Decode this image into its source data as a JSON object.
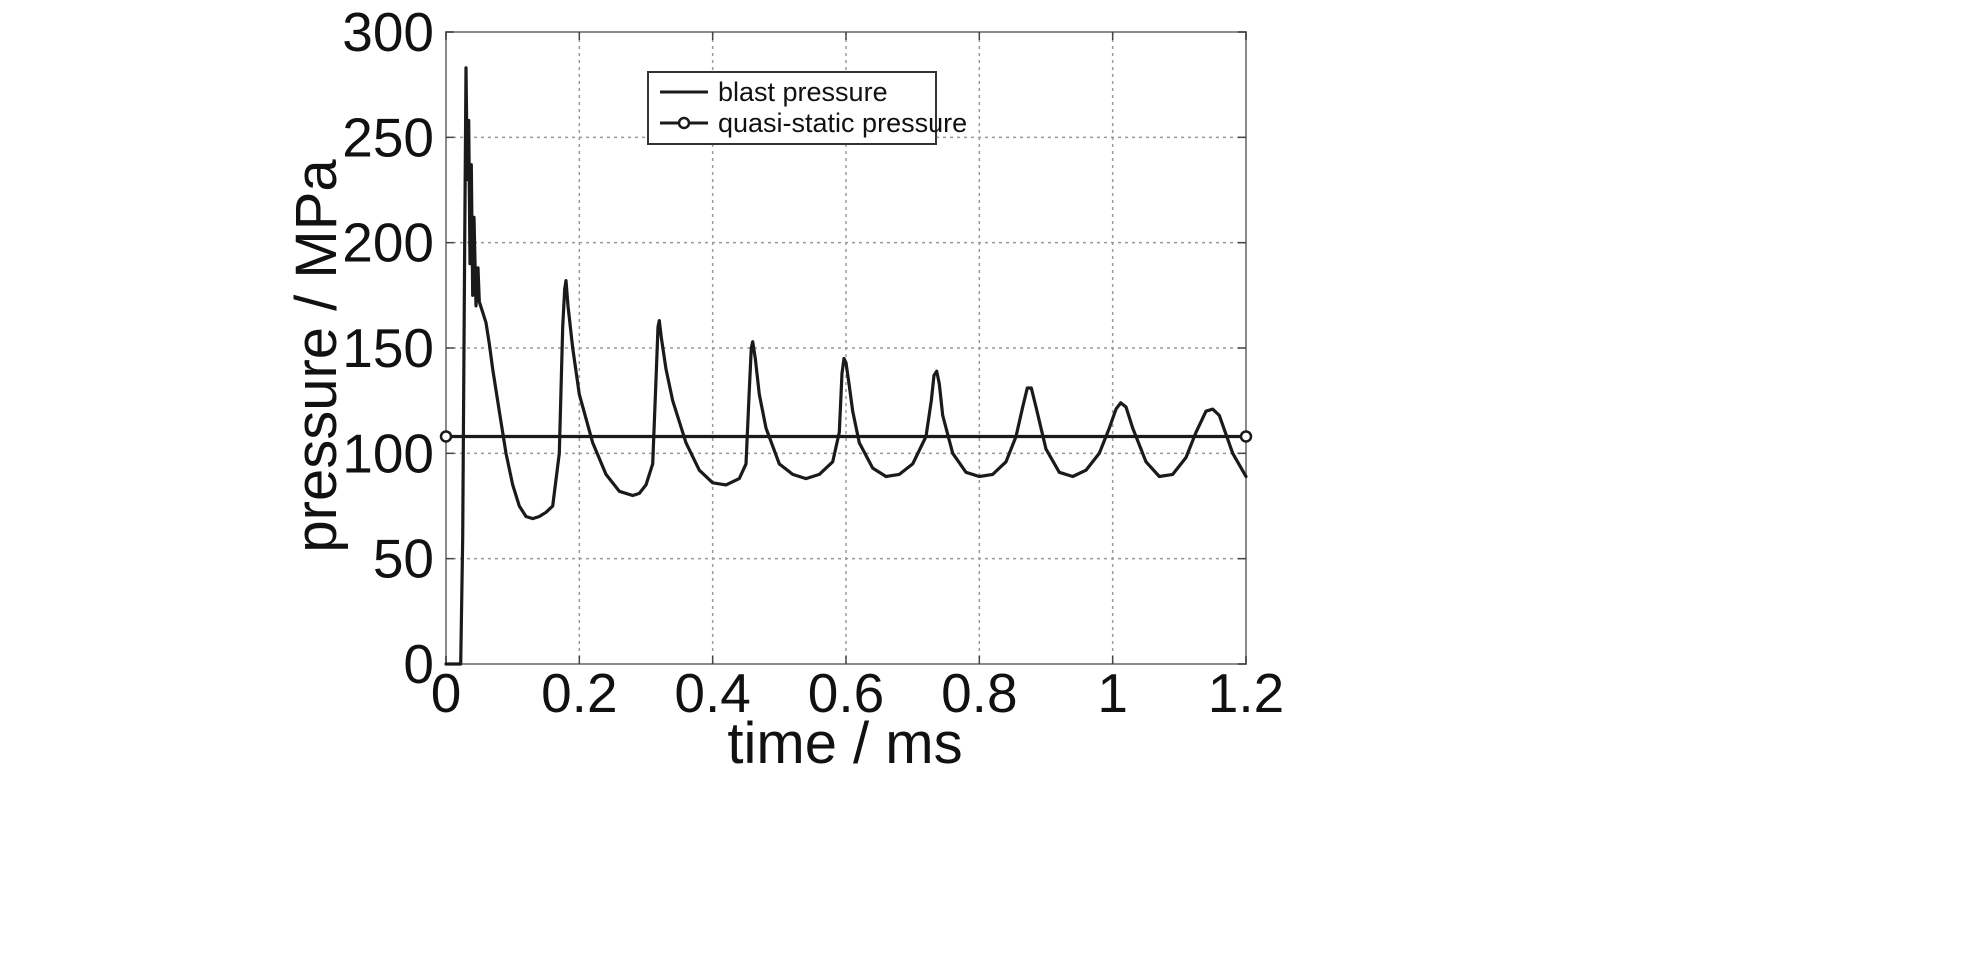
{
  "chart_data": {
    "type": "line",
    "title": "",
    "xlabel": "time / ms",
    "ylabel": "pressure / MPa",
    "xlim": [
      0,
      1.2
    ],
    "ylim": [
      0,
      300
    ],
    "xticks": [
      0,
      0.2,
      0.4,
      0.6,
      0.8,
      1,
      1.2
    ],
    "xtick_labels": [
      "0",
      "0.2",
      "0.4",
      "0.6",
      "0.8",
      "1",
      "1.2"
    ],
    "yticks": [
      0,
      50,
      100,
      150,
      200,
      250,
      300
    ],
    "ytick_labels": [
      "0",
      "50",
      "100",
      "150",
      "200",
      "250",
      "300"
    ],
    "grid": true,
    "legend_position": "top-center",
    "colors": {
      "line": "#1a1a1a",
      "grid": "#9a9a9a",
      "frame": "#8a8a8a"
    },
    "series": [
      {
        "name": "blast pressure",
        "marker": "none",
        "x": [
          0,
          0.02,
          0.022,
          0.025,
          0.028,
          0.03,
          0.032,
          0.034,
          0.036,
          0.038,
          0.04,
          0.042,
          0.045,
          0.048,
          0.05,
          0.055,
          0.06,
          0.065,
          0.07,
          0.08,
          0.09,
          0.1,
          0.11,
          0.12,
          0.13,
          0.14,
          0.15,
          0.16,
          0.17,
          0.175,
          0.178,
          0.18,
          0.183,
          0.19,
          0.2,
          0.22,
          0.24,
          0.26,
          0.28,
          0.29,
          0.3,
          0.31,
          0.315,
          0.318,
          0.32,
          0.323,
          0.33,
          0.34,
          0.36,
          0.38,
          0.4,
          0.42,
          0.44,
          0.45,
          0.455,
          0.458,
          0.46,
          0.464,
          0.47,
          0.48,
          0.5,
          0.52,
          0.54,
          0.56,
          0.58,
          0.59,
          0.594,
          0.597,
          0.6,
          0.605,
          0.61,
          0.62,
          0.64,
          0.66,
          0.68,
          0.7,
          0.72,
          0.728,
          0.732,
          0.736,
          0.74,
          0.745,
          0.76,
          0.78,
          0.8,
          0.82,
          0.84,
          0.855,
          0.865,
          0.872,
          0.878,
          0.885,
          0.9,
          0.92,
          0.94,
          0.96,
          0.98,
          0.995,
          1.005,
          1.012,
          1.02,
          1.03,
          1.05,
          1.07,
          1.09,
          1.11,
          1.125,
          1.14,
          1.15,
          1.16,
          1.18,
          1.2
        ],
        "y": [
          0,
          0,
          0,
          60,
          200,
          283,
          230,
          258,
          190,
          237,
          175,
          212,
          170,
          188,
          172,
          167,
          162,
          152,
          140,
          120,
          100,
          85,
          75,
          70,
          69,
          70,
          72,
          75,
          100,
          160,
          178,
          182,
          170,
          150,
          128,
          105,
          90,
          82,
          80,
          81,
          85,
          95,
          135,
          160,
          163,
          155,
          140,
          125,
          105,
          92,
          86,
          85,
          88,
          95,
          130,
          150,
          153,
          145,
          128,
          112,
          95,
          90,
          88,
          90,
          96,
          110,
          138,
          145,
          143,
          132,
          120,
          105,
          93,
          89,
          90,
          95,
          108,
          125,
          137,
          139,
          133,
          118,
          100,
          91,
          89,
          90,
          96,
          108,
          122,
          131,
          131,
          122,
          102,
          91,
          89,
          92,
          100,
          112,
          121,
          124,
          122,
          112,
          96,
          89,
          90,
          98,
          110,
          120,
          121,
          118,
          100,
          89
        ]
      },
      {
        "name": "quasi-static pressure",
        "marker": "circle",
        "x": [
          0,
          1.2
        ],
        "y": [
          108,
          108
        ]
      }
    ]
  }
}
